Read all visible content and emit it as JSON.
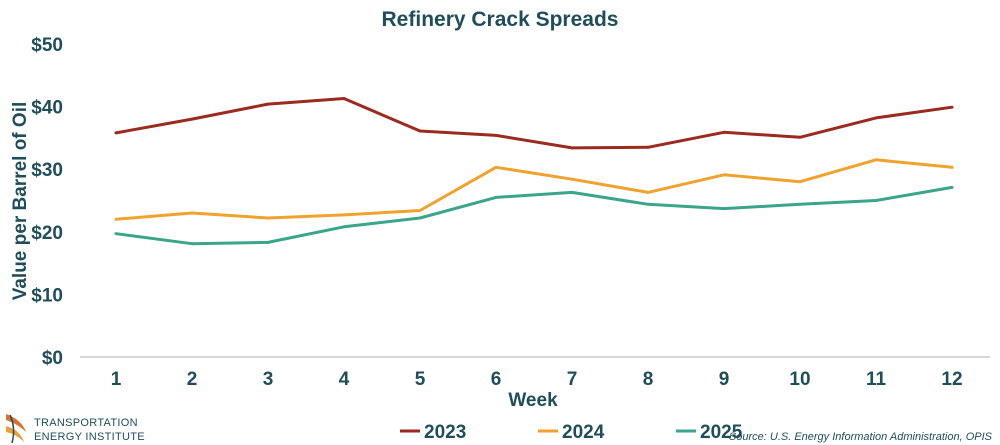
{
  "chart_data": {
    "type": "line",
    "title": "Refinery Crack Spreads",
    "xlabel": "Week",
    "ylabel": "Value per Barrel of Oil",
    "x": [
      1,
      2,
      3,
      4,
      5,
      6,
      7,
      8,
      9,
      10,
      11,
      12
    ],
    "ylim": [
      0,
      50
    ],
    "yticks": [
      0,
      10,
      20,
      30,
      40,
      50
    ],
    "ytick_labels": [
      "$0",
      "$10",
      "$20",
      "$30",
      "$40",
      "$50"
    ],
    "grid": false,
    "legend_position": "bottom-center",
    "series": [
      {
        "name": "2023",
        "color": "#9b2a1f",
        "values": [
          35.8,
          38.0,
          40.4,
          41.3,
          36.1,
          35.4,
          33.4,
          33.5,
          35.9,
          35.1,
          38.2,
          39.9
        ]
      },
      {
        "name": "2024",
        "color": "#f0a22e",
        "values": [
          22.0,
          23.0,
          22.2,
          22.7,
          23.4,
          30.3,
          28.4,
          26.3,
          29.1,
          28.0,
          31.5,
          30.3
        ]
      },
      {
        "name": "2025",
        "color": "#3aa58a",
        "values": [
          19.7,
          18.1,
          18.3,
          20.8,
          22.2,
          25.5,
          26.3,
          24.4,
          23.7,
          24.4,
          25.0,
          27.1
        ]
      }
    ]
  },
  "source_text": "Source: U.S. Energy Information Administration, OPIS",
  "logo": {
    "line1": "TRANSPORTATION",
    "line2": "ENERGY INSTITUTE"
  },
  "colors": {
    "text": "#1f4e5a",
    "axis": "#c9c9c9"
  }
}
